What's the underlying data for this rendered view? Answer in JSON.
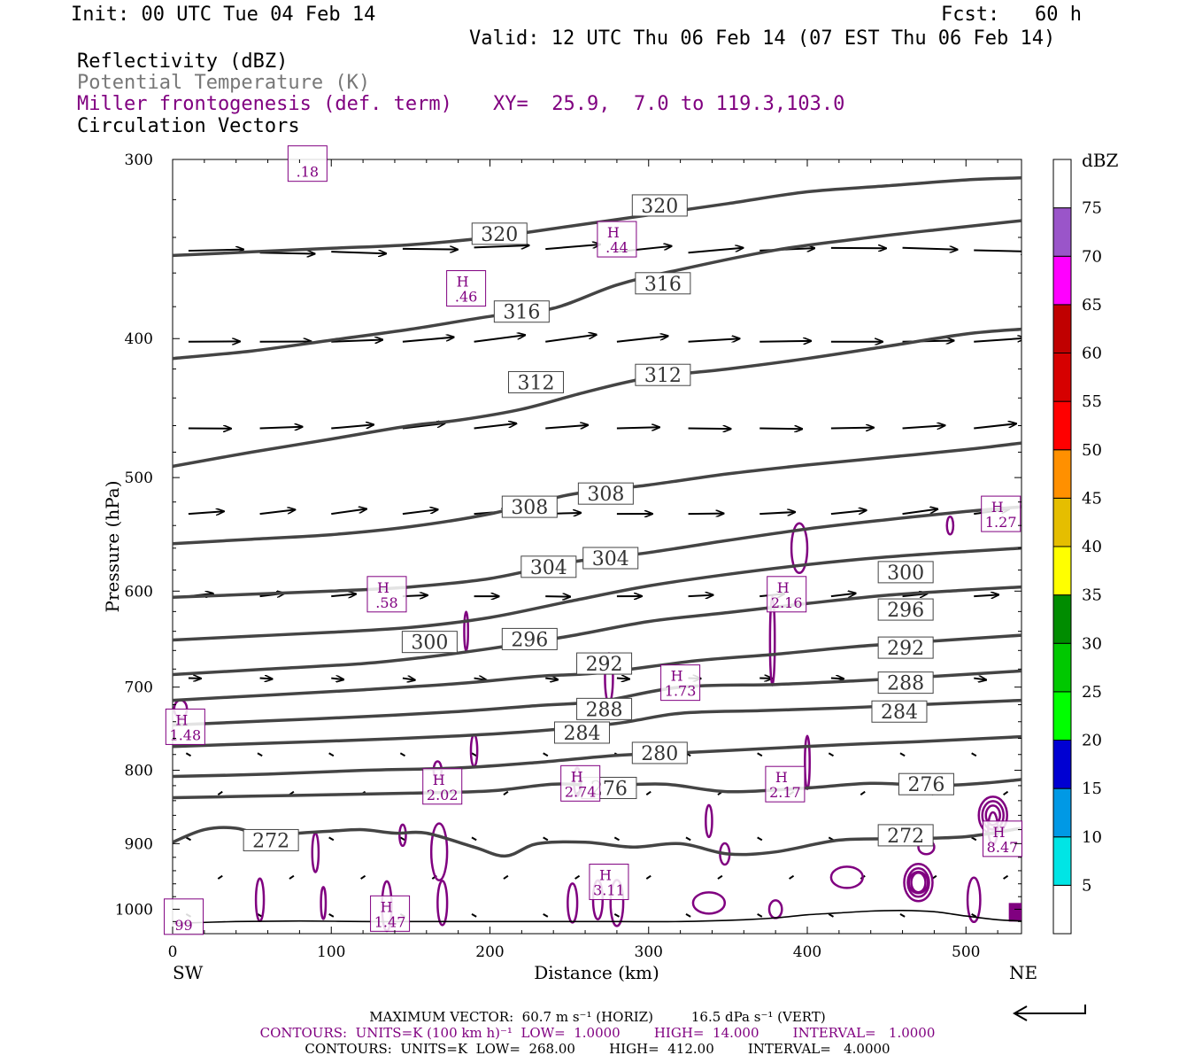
{
  "header": {
    "init": "Init: 00 UTC Tue 04 Feb 14",
    "fcst": "Fcst:   60 h",
    "valid": "Valid: 12 UTC Thu 06 Feb 14 (07 EST Thu 06 Feb 14)",
    "fields": [
      {
        "text": "Reflectivity (dBZ)",
        "color": "#000000"
      },
      {
        "text": "Potential Temperature (K)",
        "color": "#777777"
      },
      {
        "text": "Miller frontogenesis (def. term)",
        "color": "#800080"
      },
      {
        "text": "Circulation Vectors",
        "color": "#000000"
      }
    ],
    "xy": "XY=  25.9,  7.0 to 119.3,103.0"
  },
  "chart_data": {
    "type": "cross-section",
    "xlabel": "Distance (km)",
    "ylabel": "Pressure (hPa)",
    "xlim": [
      0,
      535
    ],
    "ylim": [
      1040,
      300
    ],
    "y_scale": "log",
    "x_ticks": [
      0,
      100,
      200,
      300,
      400,
      500
    ],
    "y_ticks": [
      300,
      400,
      500,
      600,
      700,
      800,
      900,
      1000
    ],
    "left_end_label": "SW",
    "right_end_label": "NE",
    "theta_contours": [
      {
        "value": 272,
        "points": [
          [
            0,
            898
          ],
          [
            20,
            880
          ],
          [
            40,
            878
          ],
          [
            60,
            890
          ],
          [
            80,
            885
          ],
          [
            100,
            882
          ],
          [
            120,
            880
          ],
          [
            140,
            885
          ],
          [
            160,
            885
          ],
          [
            190,
            905
          ],
          [
            210,
            918
          ],
          [
            230,
            900
          ],
          [
            260,
            898
          ],
          [
            290,
            905
          ],
          [
            320,
            900
          ],
          [
            350,
            915
          ],
          [
            380,
            912
          ],
          [
            420,
            895
          ],
          [
            460,
            893
          ],
          [
            500,
            890
          ],
          [
            535,
            878
          ]
        ],
        "labels": [
          [
            62,
            895
          ],
          [
            462,
            888
          ]
        ]
      },
      {
        "value": 276,
        "points": [
          [
            0,
            836
          ],
          [
            50,
            834
          ],
          [
            100,
            832
          ],
          [
            150,
            830
          ],
          [
            200,
            827
          ],
          [
            240,
            818
          ],
          [
            270,
            820
          ],
          [
            310,
            818
          ],
          [
            350,
            828
          ],
          [
            400,
            823
          ],
          [
            440,
            817
          ],
          [
            480,
            820
          ],
          [
            510,
            817
          ],
          [
            535,
            812
          ]
        ],
        "labels": [
          [
            275,
            823
          ],
          [
            475,
            818
          ]
        ]
      },
      {
        "value": 280,
        "points": [
          [
            0,
            808
          ],
          [
            60,
            805
          ],
          [
            120,
            800
          ],
          [
            180,
            797
          ],
          [
            230,
            790
          ],
          [
            280,
            781
          ],
          [
            320,
            778
          ],
          [
            370,
            773
          ],
          [
            420,
            768
          ],
          [
            470,
            764
          ],
          [
            535,
            758
          ]
        ],
        "labels": [
          [
            307,
            778
          ]
        ]
      },
      {
        "value": 284,
        "points": [
          [
            0,
            770
          ],
          [
            60,
            766
          ],
          [
            120,
            762
          ],
          [
            180,
            757
          ],
          [
            230,
            751
          ],
          [
            280,
            742
          ],
          [
            320,
            730
          ],
          [
            370,
            727
          ],
          [
            420,
            724
          ],
          [
            470,
            720
          ],
          [
            535,
            715
          ]
        ],
        "labels": [
          [
            258,
            753
          ],
          [
            458,
            728
          ]
        ]
      },
      {
        "value": 288,
        "points": [
          [
            0,
            744
          ],
          [
            60,
            739
          ],
          [
            120,
            734
          ],
          [
            180,
            728
          ],
          [
            230,
            721
          ],
          [
            270,
            716
          ],
          [
            320,
            700
          ],
          [
            380,
            697
          ],
          [
            430,
            693
          ],
          [
            480,
            688
          ],
          [
            535,
            682
          ]
        ],
        "labels": [
          [
            272,
            725
          ],
          [
            462,
            695
          ]
        ]
      },
      {
        "value": 292,
        "points": [
          [
            0,
            715
          ],
          [
            60,
            709
          ],
          [
            120,
            703
          ],
          [
            180,
            696
          ],
          [
            230,
            688
          ],
          [
            270,
            684
          ],
          [
            330,
            671
          ],
          [
            380,
            664
          ],
          [
            430,
            656
          ],
          [
            480,
            650
          ],
          [
            535,
            644
          ]
        ],
        "labels": [
          [
            272,
            674
          ],
          [
            462,
            657
          ]
        ]
      },
      {
        "value": 296,
        "points": [
          [
            0,
            686
          ],
          [
            60,
            680
          ],
          [
            120,
            674
          ],
          [
            160,
            667
          ],
          [
            200,
            658
          ],
          [
            250,
            645
          ],
          [
            300,
            630
          ],
          [
            350,
            621
          ],
          [
            400,
            612
          ],
          [
            450,
            604
          ],
          [
            500,
            599
          ],
          [
            535,
            596
          ]
        ],
        "labels": [
          [
            225,
            648
          ],
          [
            462,
            618
          ]
        ]
      },
      {
        "value": 300,
        "points": [
          [
            0,
            649
          ],
          [
            50,
            645
          ],
          [
            100,
            641
          ],
          [
            150,
            636
          ],
          [
            200,
            626
          ],
          [
            250,
            610
          ],
          [
            300,
            595
          ],
          [
            350,
            584
          ],
          [
            400,
            575
          ],
          [
            450,
            568
          ],
          [
            500,
            563
          ],
          [
            535,
            560
          ]
        ],
        "labels": [
          [
            162,
            651
          ],
          [
            462,
            582
          ]
        ]
      },
      {
        "value": 304,
        "points": [
          [
            0,
            606
          ],
          [
            50,
            603
          ],
          [
            100,
            600
          ],
          [
            150,
            596
          ],
          [
            200,
            588
          ],
          [
            250,
            573
          ],
          [
            300,
            564
          ],
          [
            350,
            553
          ],
          [
            400,
            543
          ],
          [
            450,
            535
          ],
          [
            500,
            528
          ],
          [
            535,
            524
          ]
        ],
        "labels": [
          [
            237,
            577
          ],
          [
            276,
            569
          ]
        ]
      },
      {
        "value": 308,
        "points": [
          [
            0,
            556
          ],
          [
            50,
            552
          ],
          [
            100,
            548
          ],
          [
            150,
            541
          ],
          [
            200,
            530
          ],
          [
            250,
            514
          ],
          [
            300,
            506
          ],
          [
            350,
            497
          ],
          [
            400,
            490
          ],
          [
            450,
            484
          ],
          [
            500,
            478
          ],
          [
            535,
            473
          ]
        ],
        "labels": [
          [
            225,
            524
          ],
          [
            273,
            513
          ]
        ]
      },
      {
        "value": 312,
        "points": [
          [
            0,
            491
          ],
          [
            50,
            480
          ],
          [
            100,
            470
          ],
          [
            150,
            460
          ],
          [
            180,
            456
          ],
          [
            220,
            448
          ],
          [
            260,
            436
          ],
          [
            300,
            426
          ],
          [
            350,
            420
          ],
          [
            400,
            413
          ],
          [
            450,
            405
          ],
          [
            500,
            397
          ],
          [
            535,
            394
          ]
        ],
        "labels": [
          [
            229,
            429
          ],
          [
            309,
            424
          ]
        ]
      },
      {
        "value": 316,
        "points": [
          [
            0,
            413
          ],
          [
            50,
            408
          ],
          [
            100,
            401
          ],
          [
            150,
            394
          ],
          [
            200,
            386
          ],
          [
            240,
            381
          ],
          [
            280,
            367
          ],
          [
            320,
            358
          ],
          [
            380,
            347
          ],
          [
            430,
            341
          ],
          [
            480,
            336
          ],
          [
            535,
            331
          ]
        ],
        "labels": [
          [
            220,
            383
          ],
          [
            309,
            366
          ]
        ]
      },
      {
        "value": 320,
        "points": [
          [
            0,
            350
          ],
          [
            50,
            348
          ],
          [
            100,
            346
          ],
          [
            150,
            344
          ],
          [
            200,
            340
          ],
          [
            250,
            334
          ],
          [
            300,
            328
          ],
          [
            350,
            322
          ],
          [
            400,
            316
          ],
          [
            450,
            313
          ],
          [
            500,
            310
          ],
          [
            535,
            309
          ]
        ],
        "labels": [
          [
            206,
            338
          ],
          [
            307,
            323
          ]
        ]
      }
    ],
    "surface": [
      [
        0,
        1023
      ],
      [
        40,
        1020
      ],
      [
        80,
        1019
      ],
      [
        120,
        1020
      ],
      [
        160,
        1020
      ],
      [
        200,
        1020
      ],
      [
        240,
        1020
      ],
      [
        280,
        1020
      ],
      [
        320,
        1020
      ],
      [
        360,
        1017
      ],
      [
        380,
        1014
      ],
      [
        400,
        1009
      ],
      [
        420,
        1006
      ],
      [
        440,
        1003
      ],
      [
        460,
        1002
      ],
      [
        480,
        1004
      ],
      [
        500,
        1011
      ],
      [
        520,
        1017
      ],
      [
        535,
        1019
      ]
    ],
    "frontogenesis_maxima": [
      {
        "label": "H",
        "value": ".18",
        "at": [
          85,
          302
        ],
        "show_h": false
      },
      {
        "label": "H",
        "value": ".44",
        "at": [
          280,
          341
        ],
        "show_h": true
      },
      {
        "label": "H",
        "value": ".46",
        "at": [
          185,
          369
        ],
        "show_h": true
      },
      {
        "label": "H",
        "value": "1.27",
        "at": [
          522,
          530
        ],
        "show_h": true
      },
      {
        "label": "H",
        "value": ".58",
        "at": [
          135,
          603
        ],
        "show_h": true
      },
      {
        "label": "H",
        "value": "2.16",
        "at": [
          387,
          603
        ],
        "show_h": true
      },
      {
        "label": "H",
        "value": "1.73",
        "at": [
          320,
          695
        ],
        "show_h": true
      },
      {
        "label": "H",
        "value": "1.48",
        "at": [
          8,
          746
        ],
        "show_h": true
      },
      {
        "label": "H",
        "value": "2.02",
        "at": [
          170,
          821
        ],
        "show_h": true
      },
      {
        "label": "H",
        "value": "2.74",
        "at": [
          257,
          817
        ],
        "show_h": true
      },
      {
        "label": "H",
        "value": "2.17",
        "at": [
          386,
          818
        ],
        "show_h": true
      },
      {
        "label": "H",
        "value": "8.47",
        "at": [
          523,
          893
        ],
        "show_h": true
      },
      {
        "label": "H",
        "value": "3.11",
        "at": [
          275,
          957
        ],
        "show_h": true
      },
      {
        "label": "H",
        "value": "1.47",
        "at": [
          137,
          1007
        ],
        "show_h": true
      },
      {
        "label": "H",
        "value": "99",
        "at": [
          7,
          1012
        ],
        "show_h": false
      }
    ],
    "colorbar": {
      "unit": "dBZ",
      "levels": [
        5,
        10,
        15,
        20,
        25,
        30,
        35,
        40,
        45,
        50,
        55,
        60,
        65,
        70,
        75
      ],
      "colors": [
        "#ffffff",
        "#00e5e5",
        "#0099e5",
        "#0000d2",
        "#00ff00",
        "#00c800",
        "#008c00",
        "#ffff00",
        "#e5be00",
        "#ff9000",
        "#ff0000",
        "#d60000",
        "#c00000",
        "#ff00ff",
        "#9a55c9",
        "#ffffff"
      ]
    }
  },
  "footer": {
    "max_vector": "MAXIMUM VECTOR:  60.7 m s⁻¹ (HORIZ)         16.5 dPa s⁻¹ (VERT)",
    "contours1": "CONTOURS:  UNITS=K (100 km h)⁻¹  LOW=  1.0000        HIGH=  14.000        INTERVAL=   1.0000",
    "contours2": "CONTOURS:  UNITS=K  LOW=  268.00        HIGH=  412.00        INTERVAL=   4.0000",
    "contours1_color": "#800080"
  }
}
